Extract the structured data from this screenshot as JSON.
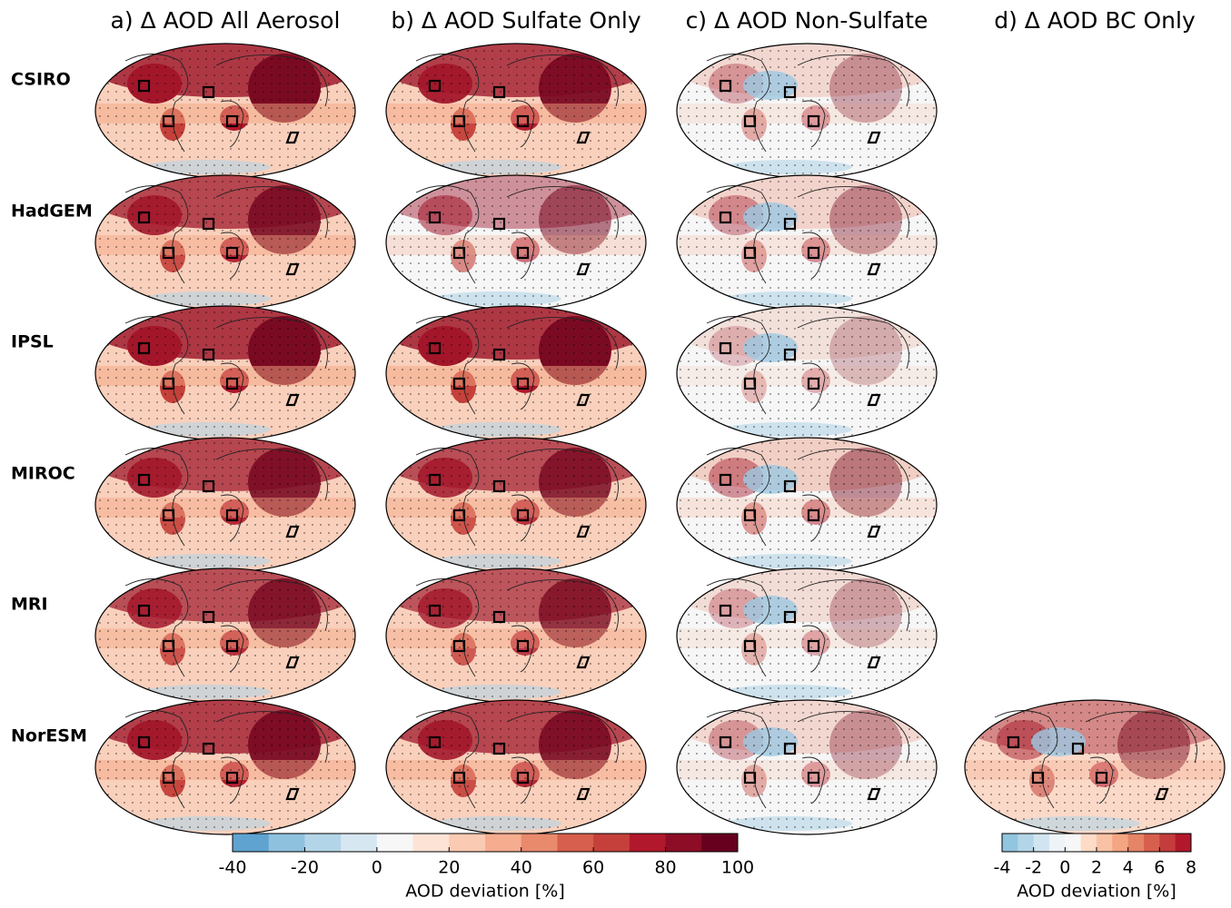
{
  "columns": [
    {
      "title": "a) Δ AOD All Aerosol"
    },
    {
      "title": "b) Δ AOD Sulfate Only"
    },
    {
      "title": "c) Δ AOD Non-Sulfate"
    },
    {
      "title": "d) Δ AOD BC Only"
    }
  ],
  "rows": [
    "CSIRO",
    "HadGEM",
    "IPSL",
    "MIROC",
    "MRI",
    "NorESM"
  ],
  "colorbars": [
    {
      "label": "AOD deviation [%]",
      "range": [
        -40,
        100
      ],
      "ticks": [
        -40,
        -20,
        0,
        20,
        40,
        60,
        80,
        100
      ],
      "colors": [
        "#5fa3d0",
        "#8ec1de",
        "#b3d5e8",
        "#d6e7f1",
        "#f7f7f7",
        "#fde3d6",
        "#fbcab3",
        "#f6ac8f",
        "#e98a6d",
        "#d6604d",
        "#c5403a",
        "#b2182b",
        "#8c0d25",
        "#67001f"
      ]
    },
    {
      "label": "AOD deviation [%]",
      "range": [
        -4,
        8
      ],
      "ticks": [
        -4,
        -2,
        0,
        2,
        4,
        6,
        8
      ],
      "colors": [
        "#92c5de",
        "#b3d5e8",
        "#d1e5f0",
        "#eef3f7",
        "#f7f7f7",
        "#fddbc7",
        "#f9c2a4",
        "#f4a582",
        "#e58467",
        "#d6604d",
        "#c43c3c",
        "#b2182b"
      ]
    }
  ]
}
